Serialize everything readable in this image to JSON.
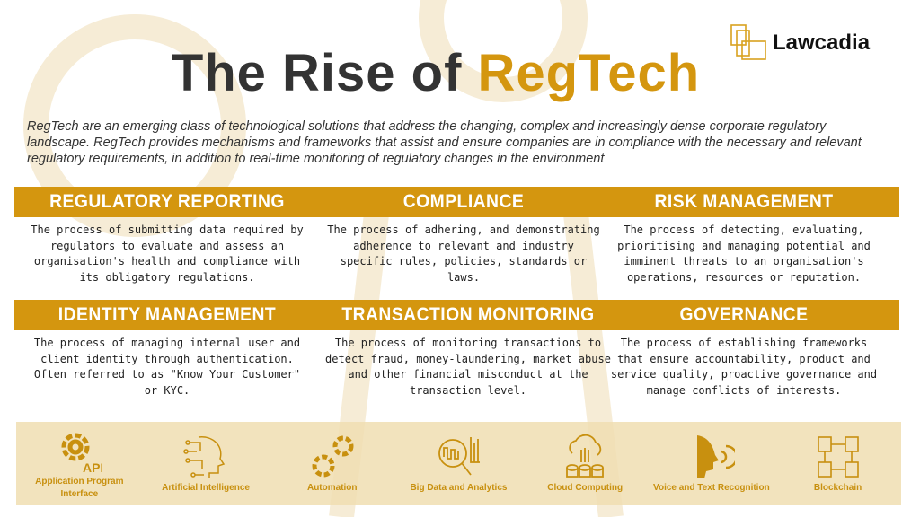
{
  "title": {
    "part1": "The Rise of ",
    "part2": "RegTech"
  },
  "logo": {
    "text": "Lawcadia"
  },
  "description": "RegTech are an emerging class of technological solutions that address the changing, complex and increasingly dense corporate regulatory landscape. RegTech provides mechanisms and frameworks that assist and ensure companies are in compliance with the necessary and relevant regulatory requirements, in addition to real-time monitoring of regulatory changes in the environment",
  "colors": {
    "accent": "#d4960f",
    "band": "#f0deb2"
  },
  "sections": [
    {
      "heading": "REGULATORY REPORTING",
      "text": "The process of submitting data required by regulators to evaluate and assess an organisation's health and compliance with its obligatory regulations."
    },
    {
      "heading": "COMPLIANCE",
      "text": "The process of adhering, and demonstrating adherence to relevant and industry specific rules, policies, standards or laws."
    },
    {
      "heading": "RISK MANAGEMENT",
      "text": "The process of detecting, evaluating, prioritising and managing potential and imminent threats to an organisation's operations, resources or reputation."
    },
    {
      "heading": "IDENTITY MANAGEMENT",
      "text": "The process of managing internal user and client identity through authentication. Often referred to as \"Know Your Customer\" or KYC."
    },
    {
      "heading": "TRANSACTION MONITORING",
      "text": "The process of monitoring transactions to detect fraud, money-laundering, market abuse and other financial misconduct at the transaction level."
    },
    {
      "heading": "GOVERNANCE",
      "text": "The process of establishing frameworks that ensure accountability, product and service quality, proactive governance and manage conflicts of interests."
    }
  ],
  "technologies": [
    {
      "label": "Application Program Interface",
      "icon": "api-gear-icon",
      "badge": "API"
    },
    {
      "label": "Artificial Intelligence",
      "icon": "ai-head-icon"
    },
    {
      "label": "Automation",
      "icon": "gears-icon"
    },
    {
      "label": "Big Data and Analytics",
      "icon": "analytics-magnifier-icon"
    },
    {
      "label": "Cloud Computing",
      "icon": "cloud-database-icon"
    },
    {
      "label": "Voice and Text Recognition",
      "icon": "voice-head-icon"
    },
    {
      "label": "Blockchain",
      "icon": "blockchain-icon"
    }
  ]
}
